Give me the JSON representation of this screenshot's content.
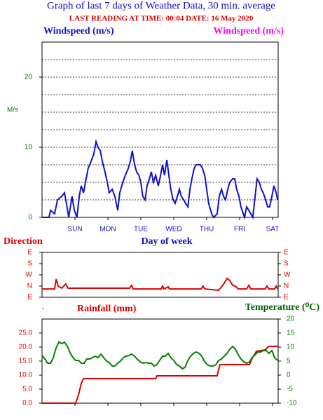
{
  "header": {
    "title": "Graph of last 7 days of Weather Data, 30 min. average",
    "subtitle": "LAST READING AT TIME: 00:04  DATE: 16 May 2020"
  },
  "chart_data": [
    {
      "type": "line",
      "x_label": "Day of week",
      "y_label": "M/s",
      "right_label": "Windspeed (m/s)",
      "right_label_color": "#ff00ff",
      "xlim": [
        0,
        7.17
      ],
      "xticks": [
        {
          "value": 1,
          "label": "SUN"
        },
        {
          "value": 2,
          "label": "MON"
        },
        {
          "value": 3,
          "label": "TUE"
        },
        {
          "value": 4,
          "label": "WED"
        },
        {
          "value": 5,
          "label": "THU"
        },
        {
          "value": 6,
          "label": "FRI"
        },
        {
          "value": 7,
          "label": "SAT"
        }
      ],
      "ylim": [
        0,
        25
      ],
      "yticks": [
        0,
        10,
        20
      ],
      "grid": [
        2.5,
        5,
        7.5,
        10,
        12.5,
        15,
        17.5,
        20,
        22.5
      ],
      "series": [
        {
          "name": "Windspeed (m/s)",
          "color": "#1010cc",
          "x": [
            0,
            0.21,
            0.26,
            0.38,
            0.47,
            0.6,
            0.68,
            0.74,
            0.81,
            0.91,
            0.98,
            1.06,
            1.13,
            1.19,
            1.26,
            1.32,
            1.4,
            1.49,
            1.57,
            1.64,
            1.7,
            1.77,
            1.83,
            1.91,
            1.98,
            2.04,
            2.13,
            2.21,
            2.3,
            2.36,
            2.45,
            2.53,
            2.62,
            2.68,
            2.74,
            2.81,
            2.87,
            2.94,
            3.0,
            3.06,
            3.13,
            3.19,
            3.26,
            3.32,
            3.38,
            3.45,
            3.53,
            3.6,
            3.66,
            3.72,
            3.79,
            3.85,
            3.91,
            3.98,
            4.04,
            4.11,
            4.17,
            4.23,
            4.3,
            4.36,
            4.43,
            4.49,
            4.55,
            4.62,
            4.68,
            4.74,
            4.81,
            4.87,
            4.94,
            5.0,
            5.06,
            5.15,
            5.21,
            5.32,
            5.38,
            5.45,
            5.51,
            5.57,
            5.64,
            5.7,
            5.79,
            5.85,
            5.91,
            5.98,
            6.04,
            6.11,
            6.15,
            6.21,
            6.28,
            6.34,
            6.4,
            6.47,
            6.53,
            6.6,
            6.66,
            6.72,
            6.79,
            6.85,
            6.91,
            6.98,
            7.04,
            7.11,
            7.15
          ],
          "values": [
            0,
            0,
            1,
            0.5,
            2.5,
            3,
            3.5,
            2,
            0,
            3,
            1,
            0,
            3,
            4.5,
            3.5,
            5,
            7,
            8,
            9,
            10.8,
            10,
            9.5,
            8,
            6.5,
            5,
            3.5,
            4,
            3,
            1,
            3.5,
            5,
            6,
            7,
            8,
            9.5,
            7.5,
            6.5,
            6,
            5,
            3,
            2.5,
            4.5,
            5.5,
            6.5,
            5,
            6,
            4.5,
            6,
            7.5,
            6,
            8.2,
            6,
            4,
            2.5,
            2,
            3,
            4,
            3,
            2.5,
            2,
            1.5,
            4,
            5.5,
            7,
            7.5,
            7.5,
            7.5,
            7,
            6,
            4,
            2,
            0.5,
            0,
            0.5,
            3,
            4,
            3,
            2.5,
            4,
            5,
            5.5,
            5.5,
            4,
            3,
            1.5,
            0.5,
            0,
            1.5,
            1,
            0.5,
            0,
            3,
            5.5,
            5,
            4,
            3.5,
            2.5,
            1.5,
            1.5,
            3,
            4.5,
            3.5,
            2.5
          ]
        }
      ]
    },
    {
      "type": "line",
      "y_label": "Direction",
      "footnote": "-",
      "mirror_ticks": true,
      "xlim": [
        0,
        7.17
      ],
      "ylim": [
        450,
        90
      ],
      "yticks": [
        {
          "value": 450,
          "label": "E"
        },
        {
          "value": 360,
          "label": "N"
        },
        {
          "value": 270,
          "label": "W"
        },
        {
          "value": 180,
          "label": "S"
        },
        {
          "value": 90,
          "label": "E"
        }
      ],
      "series": [
        {
          "name": "Direction",
          "color": "#dd0000",
          "x": [
            0,
            0.38,
            0.43,
            0.49,
            0.6,
            0.72,
            0.79,
            2.66,
            2.72,
            2.77,
            3.62,
            3.66,
            3.7,
            3.83,
            3.87,
            4.83,
            4.89,
            4.94,
            5.36,
            5.45,
            5.53,
            5.62,
            5.7,
            5.79,
            5.87,
            5.96,
            6.21,
            6.28,
            6.34,
            6.77,
            6.83,
            6.89,
            7.06,
            7.11,
            7.15
          ],
          "values": [
            383,
            383,
            304,
            360,
            377,
            343,
            377,
            377,
            354,
            383,
            383,
            360,
            383,
            366,
            383,
            383,
            360,
            383,
            394,
            366,
            338,
            298,
            315,
            354,
            360,
            383,
            383,
            354,
            383,
            383,
            360,
            383,
            383,
            360,
            383
          ]
        }
      ]
    },
    {
      "type": "line",
      "y_label": "Rainfall (mm)",
      "y2_label": "Temperature (⁰C)",
      "y2_label_color": "#006600",
      "xlim": [
        0,
        7.17
      ],
      "xticks": [
        1,
        2,
        3,
        4,
        5,
        6,
        7
      ],
      "xtick_labels": false,
      "ylim": [
        0,
        30
      ],
      "yticks": [
        {
          "value": 0,
          "label": "0.0"
        },
        {
          "value": 5,
          "label": "5.0"
        },
        {
          "value": 10,
          "label": "10.0"
        },
        {
          "value": 15,
          "label": "15.0"
        },
        {
          "value": 20,
          "label": "20.0"
        },
        {
          "value": 25,
          "label": "25.0"
        }
      ],
      "y2lim": [
        -10,
        20
      ],
      "y2ticks": [
        -10,
        -5,
        0,
        5,
        10,
        15,
        20
      ],
      "series": [
        {
          "name": "Rainfall (mm)",
          "color": "#dd0000",
          "x": [
            0,
            1.02,
            1.11,
            1.19,
            1.26,
            3.45,
            3.49,
            5.32,
            5.4,
            6.3,
            6.38,
            6.51,
            6.77,
            6.89,
            7.17
          ],
          "values": [
            0,
            0,
            3,
            7,
            8.75,
            8.75,
            9.75,
            9.75,
            13.75,
            13.75,
            16,
            18.5,
            19,
            20.25,
            20.25
          ]
        },
        {
          "name": "Temperature (⁰C)",
          "color": "#008000",
          "axis": "y2",
          "x": [
            0,
            0.09,
            0.17,
            0.26,
            0.34,
            0.43,
            0.51,
            0.6,
            0.68,
            0.77,
            0.85,
            0.94,
            1.02,
            1.11,
            1.19,
            1.28,
            1.36,
            1.45,
            1.53,
            1.62,
            1.7,
            1.79,
            1.87,
            1.96,
            2.04,
            2.13,
            2.21,
            2.3,
            2.38,
            2.47,
            2.55,
            2.64,
            2.72,
            2.81,
            2.89,
            2.98,
            3.06,
            3.15,
            3.23,
            3.32,
            3.4,
            3.49,
            3.57,
            3.66,
            3.74,
            3.83,
            3.91,
            4.0,
            4.09,
            4.17,
            4.26,
            4.34,
            4.43,
            4.51,
            4.6,
            4.68,
            4.77,
            4.85,
            4.94,
            5.02,
            5.11,
            5.19,
            5.28,
            5.36,
            5.45,
            5.53,
            5.62,
            5.7,
            5.79,
            5.87,
            5.96,
            6.04,
            6.13,
            6.21,
            6.3,
            6.38,
            6.47,
            6.55,
            6.64,
            6.72,
            6.81,
            6.89,
            6.98,
            7.06,
            7.15
          ],
          "values": [
            7,
            5.75,
            4.25,
            4.25,
            6.25,
            9.75,
            11.75,
            11.25,
            11.75,
            10.25,
            8,
            6.25,
            5.25,
            5.25,
            4.25,
            4.25,
            5.75,
            5.75,
            6.25,
            6.75,
            6.25,
            7.5,
            6.25,
            5,
            4.5,
            3.25,
            3.25,
            4.25,
            5,
            6.25,
            6.75,
            7,
            7.5,
            6.75,
            5.75,
            4.75,
            4.25,
            4.5,
            4.25,
            4.25,
            3.25,
            3.75,
            5.25,
            6.75,
            6.75,
            7.75,
            6.25,
            5.25,
            3.75,
            3.25,
            2.25,
            2.75,
            5.25,
            6.75,
            7.75,
            8.25,
            7.75,
            6.75,
            4.75,
            3.75,
            3.25,
            3.25,
            3.75,
            5.25,
            5.75,
            6.75,
            7.75,
            9.25,
            10.25,
            9.25,
            7.25,
            5.75,
            4.75,
            4.25,
            4.75,
            6.25,
            7.25,
            8.25,
            8.25,
            8.75,
            8.75,
            7.75,
            8.75,
            6.25,
            5.25
          ]
        }
      ]
    }
  ]
}
